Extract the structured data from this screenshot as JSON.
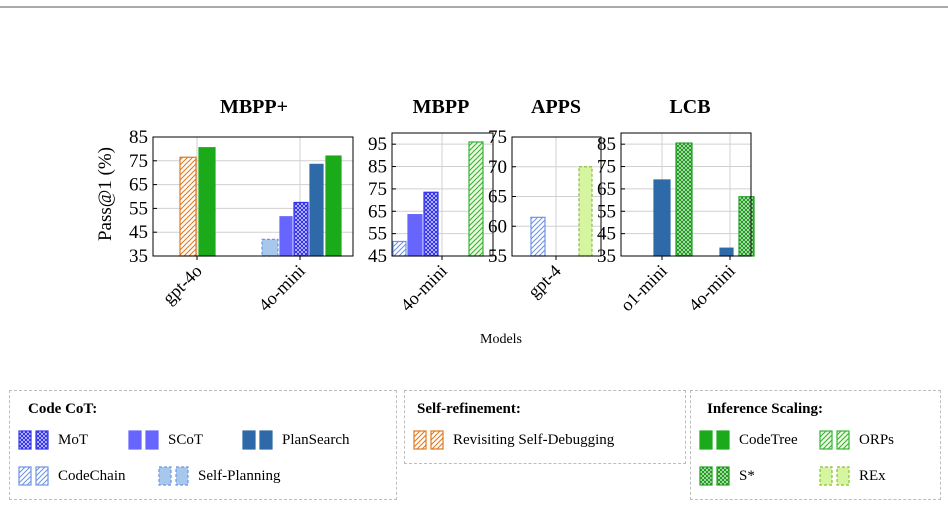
{
  "chart_data": {
    "type": "bar",
    "ylabel": "Pass@1 (%)",
    "xlabel": "Models",
    "panels": [
      {
        "title": "MBPP+",
        "ylim": [
          35,
          85
        ],
        "yticks": [
          35,
          45,
          55,
          65,
          75,
          85
        ],
        "categories": [
          "gpt-4o",
          "4o-mini"
        ],
        "bars": [
          {
            "category": "gpt-4o",
            "series": "Revisiting Self-Debugging",
            "value": 76.5
          },
          {
            "category": "gpt-4o",
            "series": "CodeTree",
            "value": 80.5
          },
          {
            "category": "4o-mini",
            "series": "Self-Planning",
            "value": 42
          },
          {
            "category": "4o-mini",
            "series": "SCoT",
            "value": 51.5
          },
          {
            "category": "4o-mini",
            "series": "MoT",
            "value": 57.5
          },
          {
            "category": "4o-mini",
            "series": "PlanSearch",
            "value": 73.5
          },
          {
            "category": "4o-mini",
            "series": "CodeTree",
            "value": 77
          }
        ]
      },
      {
        "title": "MBPP",
        "ylim": [
          45,
          100
        ],
        "yticks": [
          45,
          55,
          65,
          75,
          85,
          95
        ],
        "categories": [
          "4o-mini"
        ],
        "bars": [
          {
            "category": "4o-mini",
            "series": "CodeChain",
            "value": 51.5
          },
          {
            "category": "4o-mini",
            "series": "SCoT",
            "value": 63.5
          },
          {
            "category": "4o-mini",
            "series": "MoT",
            "value": 73.5
          },
          {
            "category": "4o-mini",
            "series": "ORPs",
            "value": 96
          }
        ]
      },
      {
        "title": "APPS",
        "ylim": [
          55,
          75
        ],
        "yticks": [
          55,
          60,
          65,
          70,
          75
        ],
        "categories": [
          "gpt-4"
        ],
        "bars": [
          {
            "category": "gpt-4",
            "series": "CodeChain",
            "value": 61.5
          },
          {
            "category": "gpt-4",
            "series": "REx",
            "value": 70
          }
        ]
      },
      {
        "title": "LCB",
        "ylim": [
          35,
          90
        ],
        "yticks": [
          35,
          45,
          55,
          65,
          75,
          85
        ],
        "categories": [
          "o1-mini",
          "4o-mini"
        ],
        "bars": [
          {
            "category": "o1-mini",
            "series": "PlanSearch",
            "value": 69
          },
          {
            "category": "o1-mini",
            "series": "S*",
            "value": 85.5
          },
          {
            "category": "4o-mini",
            "series": "PlanSearch",
            "value": 38.5
          },
          {
            "category": "4o-mini",
            "series": "S*",
            "value": 61.5
          }
        ]
      }
    ],
    "legend": {
      "groups": [
        {
          "title": "Code CoT:",
          "entries": [
            "MoT",
            "SCoT",
            "PlanSearch",
            "CodeChain",
            "Self-Planning"
          ]
        },
        {
          "title": "Self-refinement:",
          "entries": [
            "Revisiting Self-Debugging"
          ]
        },
        {
          "title": "Inference Scaling:",
          "entries": [
            "CodeTree",
            "ORPs",
            "S*",
            "REx"
          ]
        }
      ]
    },
    "styles": {
      "MoT": {
        "color": "#3333ee",
        "pattern": "crosshatch"
      },
      "SCoT": {
        "color": "#6666ff",
        "pattern": "solid"
      },
      "PlanSearch": {
        "color": "#2f6aa8",
        "pattern": "solid"
      },
      "CodeChain": {
        "color": "#6f94e6",
        "pattern": "diagonal"
      },
      "Self-Planning": {
        "color": "#a7c7ec",
        "pattern": "solid-dashed"
      },
      "Revisiting Self-Debugging": {
        "color": "#e07a1f",
        "pattern": "diagonal"
      },
      "CodeTree": {
        "color": "#1aaa1a",
        "pattern": "solid"
      },
      "ORPs": {
        "color": "#36b336",
        "pattern": "diagonal-light"
      },
      "S*": {
        "color": "#1f9c1f",
        "pattern": "crosshatch"
      },
      "REx": {
        "color": "#d6f5a0",
        "pattern": "solid-dashed"
      }
    }
  }
}
